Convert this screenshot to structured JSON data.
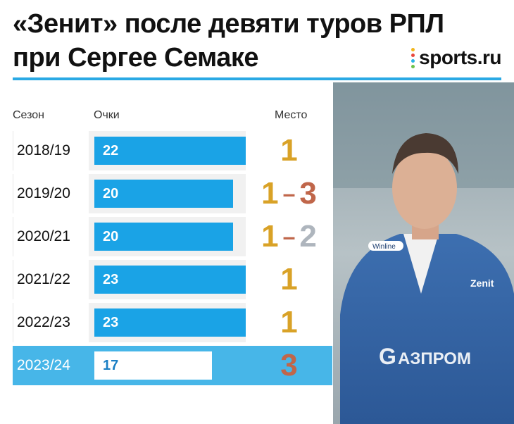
{
  "title": {
    "line1": "«Зенит» после девяти туров РПЛ",
    "line2": "при Сергее Семаке"
  },
  "logo": {
    "text": "sports.ru"
  },
  "colors": {
    "accent": "#2aa9e4",
    "bar": "#1aa3e6",
    "highlight": "#47b6e8",
    "gold": "#d9a227",
    "bronze": "#c0664a",
    "silver": "#aeb5bd"
  },
  "chart_data": {
    "type": "bar",
    "columns": {
      "season": "Сезон",
      "points": "Очки",
      "place": "Место"
    },
    "categories": [
      "2018/19",
      "2019/20",
      "2020/21",
      "2021/22",
      "2022/23",
      "2023/24"
    ],
    "values": [
      22,
      20,
      20,
      23,
      23,
      17
    ],
    "places": [
      {
        "from": "1",
        "to": ""
      },
      {
        "from": "1",
        "to": "3"
      },
      {
        "from": "1",
        "to": "2"
      },
      {
        "from": "1",
        "to": ""
      },
      {
        "from": "1",
        "to": ""
      },
      {
        "from": "3",
        "to": ""
      }
    ],
    "highlight_index": 5,
    "xlim": [
      0,
      25
    ]
  }
}
